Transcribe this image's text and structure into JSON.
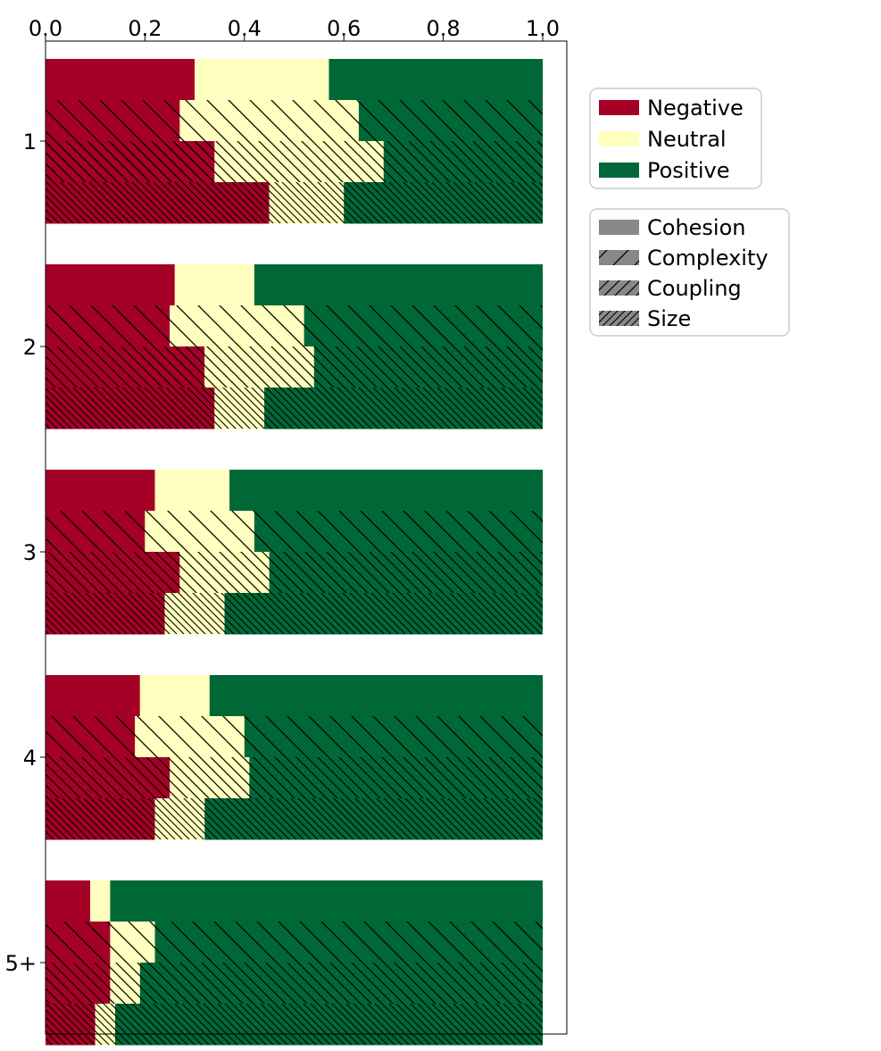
{
  "chart_data": {
    "type": "bar",
    "orientation": "horizontal",
    "stacked": true,
    "normalized": true,
    "xlim": [
      0,
      1.0
    ],
    "x_ticks": [
      "0.0",
      "0.2",
      "0.4",
      "0.6",
      "0.8",
      "1.0"
    ],
    "x_tick_values": [
      0,
      0.2,
      0.4,
      0.6,
      0.8,
      1.0
    ],
    "x_axis_position": "top",
    "categories": [
      "1",
      "2",
      "3",
      "4",
      "5+"
    ],
    "sentiments": [
      {
        "name": "Negative",
        "color": "#a50026"
      },
      {
        "name": "Neutral",
        "color": "#ffffbf"
      },
      {
        "name": "Positive",
        "color": "#006837"
      }
    ],
    "metrics": [
      {
        "name": "Cohesion",
        "hatch": "none"
      },
      {
        "name": "Complexity",
        "hatch": "sparse"
      },
      {
        "name": "Coupling",
        "hatch": "medium"
      },
      {
        "name": "Size",
        "hatch": "dense"
      }
    ],
    "hatch_color": "#000000",
    "legend_swatch_color": "#888888",
    "legend_placement": "right of plot, upper",
    "groups": [
      {
        "category": "1",
        "bars": [
          {
            "metric": "Cohesion",
            "negative": 0.3,
            "neutral": 0.27,
            "positive": 0.43
          },
          {
            "metric": "Complexity",
            "negative": 0.27,
            "neutral": 0.36,
            "positive": 0.37
          },
          {
            "metric": "Coupling",
            "negative": 0.34,
            "neutral": 0.34,
            "positive": 0.32
          },
          {
            "metric": "Size",
            "negative": 0.45,
            "neutral": 0.15,
            "positive": 0.4
          }
        ]
      },
      {
        "category": "2",
        "bars": [
          {
            "metric": "Cohesion",
            "negative": 0.26,
            "neutral": 0.16,
            "positive": 0.58
          },
          {
            "metric": "Complexity",
            "negative": 0.25,
            "neutral": 0.27,
            "positive": 0.48
          },
          {
            "metric": "Coupling",
            "negative": 0.32,
            "neutral": 0.22,
            "positive": 0.46
          },
          {
            "metric": "Size",
            "negative": 0.34,
            "neutral": 0.1,
            "positive": 0.56
          }
        ]
      },
      {
        "category": "3",
        "bars": [
          {
            "metric": "Cohesion",
            "negative": 0.22,
            "neutral": 0.15,
            "positive": 0.63
          },
          {
            "metric": "Complexity",
            "negative": 0.2,
            "neutral": 0.22,
            "positive": 0.58
          },
          {
            "metric": "Coupling",
            "negative": 0.27,
            "neutral": 0.18,
            "positive": 0.55
          },
          {
            "metric": "Size",
            "negative": 0.24,
            "neutral": 0.12,
            "positive": 0.64
          }
        ]
      },
      {
        "category": "4",
        "bars": [
          {
            "metric": "Cohesion",
            "negative": 0.19,
            "neutral": 0.14,
            "positive": 0.67
          },
          {
            "metric": "Complexity",
            "negative": 0.18,
            "neutral": 0.22,
            "positive": 0.6
          },
          {
            "metric": "Coupling",
            "negative": 0.25,
            "neutral": 0.16,
            "positive": 0.59
          },
          {
            "metric": "Size",
            "negative": 0.22,
            "neutral": 0.1,
            "positive": 0.68
          }
        ]
      },
      {
        "category": "5+",
        "bars": [
          {
            "metric": "Cohesion",
            "negative": 0.09,
            "neutral": 0.04,
            "positive": 0.87
          },
          {
            "metric": "Complexity",
            "negative": 0.13,
            "neutral": 0.09,
            "positive": 0.78
          },
          {
            "metric": "Coupling",
            "negative": 0.13,
            "neutral": 0.06,
            "positive": 0.81
          },
          {
            "metric": "Size",
            "negative": 0.1,
            "neutral": 0.04,
            "positive": 0.86
          }
        ]
      }
    ]
  }
}
